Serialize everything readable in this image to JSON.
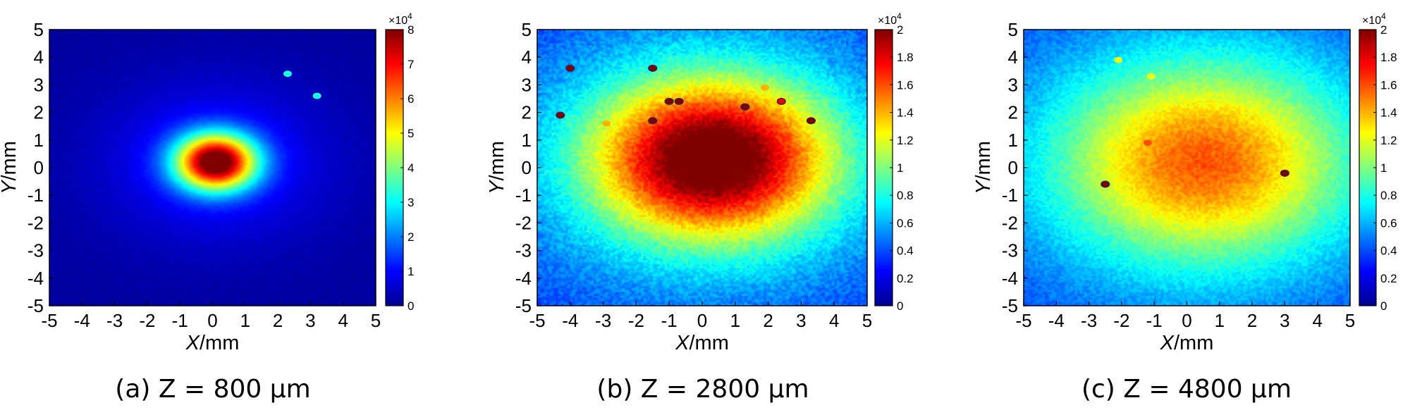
{
  "chart_data": [
    {
      "type": "heatmap",
      "caption": "(a) Z = 800 μm",
      "xlabel_italic": "X",
      "xlabel_unit": "/mm",
      "ylabel_italic": "Y",
      "ylabel_unit": "/mm",
      "xlim": [
        -5,
        5
      ],
      "ylim": [
        -5,
        5
      ],
      "xticks": [
        -5,
        -4,
        -3,
        -2,
        -1,
        0,
        1,
        2,
        3,
        4,
        5
      ],
      "yticks": [
        -5,
        -4,
        -3,
        -2,
        -1,
        0,
        1,
        2,
        3,
        4,
        5
      ],
      "colorbar": {
        "min": 0,
        "max": 8,
        "ticks": [
          0,
          1,
          2,
          3,
          4,
          5,
          6,
          7,
          8
        ],
        "multiplier_base": "×10",
        "multiplier_exp": "4"
      },
      "colormap": "jet",
      "spot": {
        "center": [
          0.1,
          0.2
        ],
        "sigma": [
          0.85,
          0.7
        ],
        "peak": 1.0,
        "halo_sigma": [
          2.4,
          2.0
        ],
        "halo_level": 0.12,
        "background": 0.03,
        "noise": 0.01
      },
      "hot_pixels": [
        [
          2.3,
          3.4,
          0.4
        ],
        [
          3.2,
          2.6,
          0.4
        ]
      ]
    },
    {
      "type": "heatmap",
      "caption": "(b) Z = 2800 μm",
      "xlabel_italic": "X",
      "xlabel_unit": "/mm",
      "ylabel_italic": "Y",
      "ylabel_unit": "/mm",
      "xlim": [
        -5,
        5
      ],
      "ylim": [
        -5,
        5
      ],
      "xticks": [
        -5,
        -4,
        -3,
        -2,
        -1,
        0,
        1,
        2,
        3,
        4,
        5
      ],
      "yticks": [
        -5,
        -4,
        -3,
        -2,
        -1,
        0,
        1,
        2,
        3,
        4,
        5
      ],
      "colorbar": {
        "min": 0,
        "max": 2,
        "ticks": [
          0,
          0.2,
          0.4,
          0.6,
          0.8,
          1,
          1.2,
          1.4,
          1.6,
          1.8,
          2
        ],
        "multiplier_base": "×10",
        "multiplier_exp": "4"
      },
      "colormap": "jet",
      "spot": {
        "center": [
          0.3,
          0.3
        ],
        "sigma": [
          2.4,
          1.9
        ],
        "peak": 0.88,
        "halo_sigma": [
          4.0,
          3.3
        ],
        "halo_level": 0.25,
        "background": 0.17,
        "noise": 0.05
      },
      "hot_pixels": [
        [
          -4.3,
          1.9,
          1.0
        ],
        [
          -4.0,
          3.6,
          1.0
        ],
        [
          -1.5,
          3.6,
          1.0
        ],
        [
          -1.5,
          1.7,
          1.0
        ],
        [
          -1.0,
          2.4,
          1.0
        ],
        [
          -0.7,
          2.4,
          1.0
        ],
        [
          1.3,
          2.2,
          1.0
        ],
        [
          2.4,
          2.4,
          0.9
        ],
        [
          3.3,
          1.7,
          1.0
        ],
        [
          -2.9,
          1.6,
          0.7
        ],
        [
          1.9,
          2.9,
          0.7
        ]
      ]
    },
    {
      "type": "heatmap",
      "caption": "(c) Z = 4800 μm",
      "xlabel_italic": "X",
      "xlabel_unit": "/mm",
      "ylabel_italic": "Y",
      "ylabel_unit": "/mm",
      "xlim": [
        -5,
        5
      ],
      "ylim": [
        -5,
        5
      ],
      "xticks": [
        -5,
        -4,
        -3,
        -2,
        -1,
        0,
        1,
        2,
        3,
        4,
        5
      ],
      "yticks": [
        -5,
        -4,
        -3,
        -2,
        -1,
        0,
        1,
        2,
        3,
        4,
        5
      ],
      "colorbar": {
        "min": 0,
        "max": 2,
        "ticks": [
          0,
          0.2,
          0.4,
          0.6,
          0.8,
          1,
          1.2,
          1.4,
          1.6,
          1.8,
          2
        ],
        "multiplier_base": "×10",
        "multiplier_exp": "4"
      },
      "colormap": "jet",
      "spot": {
        "center": [
          0.5,
          0.2
        ],
        "sigma": [
          3.0,
          2.4
        ],
        "peak": 0.57,
        "halo_sigma": [
          4.6,
          3.8
        ],
        "halo_level": 0.22,
        "background": 0.16,
        "noise": 0.04
      },
      "hot_pixels": [
        [
          -2.5,
          -0.6,
          1.0
        ],
        [
          3.0,
          -0.2,
          1.0
        ],
        [
          -1.2,
          0.9,
          0.8
        ],
        [
          -2.1,
          3.9,
          0.6
        ],
        [
          -1.1,
          3.3,
          0.6
        ]
      ]
    }
  ]
}
